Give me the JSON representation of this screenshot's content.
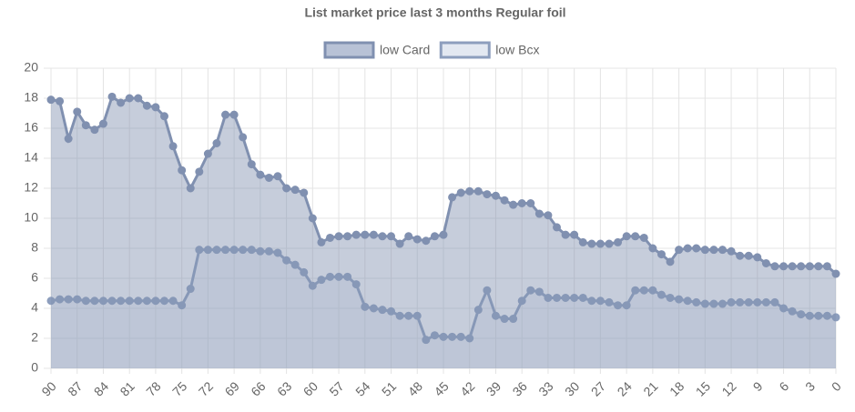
{
  "chart_data": {
    "type": "area",
    "title": "List market price last 3 months Regular foil",
    "categories": [
      90,
      null,
      null,
      87,
      null,
      null,
      84,
      null,
      null,
      81,
      null,
      null,
      78,
      null,
      null,
      75,
      null,
      null,
      72,
      null,
      null,
      69,
      null,
      null,
      66,
      null,
      null,
      63,
      null,
      null,
      60,
      null,
      null,
      57,
      null,
      null,
      54,
      null,
      null,
      51,
      null,
      null,
      48,
      null,
      null,
      45,
      null,
      null,
      42,
      null,
      null,
      39,
      null,
      null,
      36,
      null,
      null,
      33,
      null,
      null,
      30,
      null,
      null,
      27,
      null,
      null,
      24,
      null,
      null,
      21,
      null,
      null,
      18,
      null,
      null,
      15,
      null,
      null,
      12,
      null,
      null,
      9,
      null,
      null,
      6,
      null,
      null,
      3,
      null,
      null,
      0
    ],
    "series": [
      {
        "name": "low Card",
        "color": "#8090b0",
        "fill": "rgba(128,144,176,0.45)",
        "legend_fill": "#b8c2d6",
        "values": [
          17.9,
          17.8,
          15.3,
          17.1,
          16.2,
          15.9,
          16.3,
          18.1,
          17.7,
          18.0,
          18.0,
          17.5,
          17.4,
          16.8,
          14.8,
          13.2,
          12.0,
          13.1,
          14.3,
          15.0,
          16.9,
          16.9,
          15.4,
          13.6,
          12.9,
          12.7,
          12.8,
          12.0,
          11.9,
          11.7,
          10.0,
          8.4,
          8.7,
          8.8,
          8.8,
          8.9,
          8.9,
          8.9,
          8.8,
          8.8,
          8.3,
          8.8,
          8.6,
          8.5,
          8.8,
          8.9,
          11.4,
          11.7,
          11.8,
          11.8,
          11.6,
          11.5,
          11.2,
          10.9,
          11.0,
          11.0,
          10.3,
          10.2,
          9.4,
          8.9,
          8.9,
          8.4,
          8.3,
          8.3,
          8.3,
          8.4,
          8.8,
          8.8,
          8.7,
          8.0,
          7.6,
          7.1,
          7.9,
          8.0,
          8.0,
          7.9,
          7.9,
          7.9,
          7.8,
          7.5,
          7.5,
          7.4,
          7.0,
          6.8,
          6.8,
          6.8,
          6.8,
          6.8,
          6.8,
          6.8,
          6.3
        ]
      },
      {
        "name": "low Bcx",
        "color": "#8d9ebd",
        "fill": "rgba(205,214,230,0.3)",
        "legend_fill": "#e3e8f1",
        "values": [
          4.5,
          4.6,
          4.6,
          4.6,
          4.5,
          4.5,
          4.5,
          4.5,
          4.5,
          4.5,
          4.5,
          4.5,
          4.5,
          4.5,
          4.5,
          4.2,
          5.3,
          7.9,
          7.9,
          7.9,
          7.9,
          7.9,
          7.9,
          7.9,
          7.8,
          7.8,
          7.7,
          7.2,
          6.9,
          6.4,
          5.5,
          5.9,
          6.1,
          6.1,
          6.1,
          5.6,
          4.1,
          4.0,
          3.9,
          3.8,
          3.5,
          3.5,
          3.5,
          1.9,
          2.2,
          2.1,
          2.1,
          2.1,
          2.0,
          3.9,
          5.2,
          3.5,
          3.3,
          3.3,
          4.5,
          5.2,
          5.1,
          4.7,
          4.7,
          4.7,
          4.7,
          4.7,
          4.5,
          4.5,
          4.4,
          4.2,
          4.2,
          5.2,
          5.2,
          5.2,
          4.9,
          4.7,
          4.6,
          4.5,
          4.4,
          4.3,
          4.3,
          4.3,
          4.4,
          4.4,
          4.4,
          4.4,
          4.4,
          4.4,
          4.0,
          3.8,
          3.6,
          3.5,
          3.5,
          3.5,
          3.4
        ]
      }
    ],
    "ylim": [
      0,
      20
    ],
    "yticks": [
      0,
      2,
      4,
      6,
      8,
      10,
      12,
      14,
      16,
      18,
      20
    ],
    "grid": true
  }
}
